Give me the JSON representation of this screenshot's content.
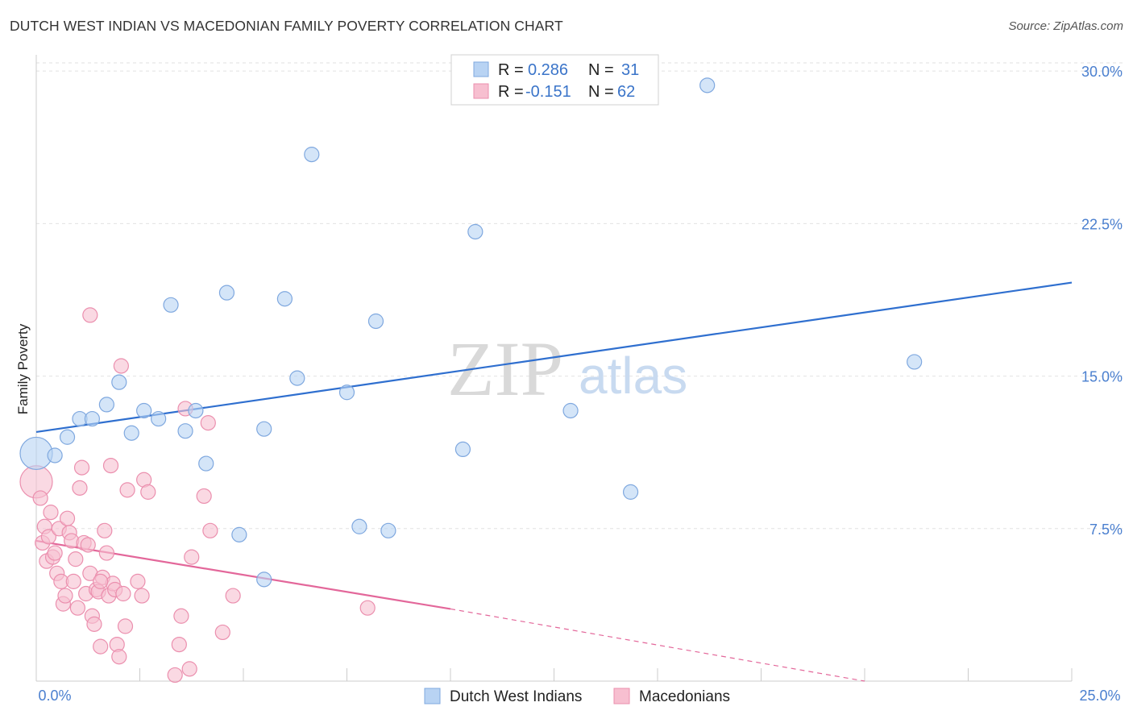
{
  "title": "DUTCH WEST INDIAN VS MACEDONIAN FAMILY POVERTY CORRELATION CHART",
  "source": "Source: ZipAtlas.com",
  "watermark": {
    "zip": "ZIP",
    "atlas": "atlas"
  },
  "colors": {
    "blue_fill": "#b8d3f3",
    "blue_stroke": "#7fa8df",
    "blue_line": "#2f6fcf",
    "pink_fill": "#f7bfd0",
    "pink_stroke": "#eb8fae",
    "pink_line": "#e3679a",
    "grid": "#e2e2e2",
    "axis_text": "#4a7fcf"
  },
  "legend": {
    "rows": [
      {
        "r_label": "R =",
        "r_value": "0.286",
        "n_label": "N =",
        "n_value": "31",
        "series": "blue"
      },
      {
        "r_label": "R =",
        "r_value": "-0.151",
        "n_label": "N =",
        "n_value": "62",
        "series": "pink"
      }
    ]
  },
  "bottom_legend": [
    "Dutch West Indians",
    "Macedonians"
  ],
  "chart_data": {
    "type": "scatter",
    "title": "DUTCH WEST INDIAN VS MACEDONIAN FAMILY POVERTY CORRELATION CHART",
    "xlabel": "",
    "ylabel": "Family Poverty",
    "xlim": [
      0,
      25
    ],
    "ylim": [
      0,
      30.8
    ],
    "x_tick_labels": [
      "0.0%",
      "25.0%"
    ],
    "y_ticks": [
      7.5,
      15.0,
      22.5,
      30.0
    ],
    "y_tick_labels": [
      "7.5%",
      "15.0%",
      "22.5%",
      "30.0%"
    ],
    "grid": true,
    "series": [
      {
        "name": "Dutch West Indians",
        "color": "blue",
        "r": 0.286,
        "n": 31,
        "points": [
          [
            0.0,
            11.2,
            2
          ],
          [
            0.45,
            11.1,
            1
          ],
          [
            0.75,
            12.0,
            1
          ],
          [
            1.05,
            12.9,
            1
          ],
          [
            1.35,
            12.9,
            1
          ],
          [
            1.7,
            13.6,
            1
          ],
          [
            2.0,
            14.7,
            1
          ],
          [
            2.3,
            12.2,
            1
          ],
          [
            2.6,
            13.3,
            1
          ],
          [
            2.95,
            12.9,
            1
          ],
          [
            3.25,
            18.5,
            1
          ],
          [
            3.6,
            12.3,
            1
          ],
          [
            3.85,
            13.3,
            1
          ],
          [
            4.1,
            10.7,
            1
          ],
          [
            4.6,
            19.1,
            1
          ],
          [
            4.9,
            7.2,
            1
          ],
          [
            5.5,
            12.4,
            1
          ],
          [
            5.5,
            5.0,
            1
          ],
          [
            6.0,
            18.8,
            1
          ],
          [
            6.3,
            14.9,
            1
          ],
          [
            6.65,
            25.9,
            1
          ],
          [
            7.5,
            14.2,
            1
          ],
          [
            7.8,
            7.6,
            1
          ],
          [
            8.2,
            17.7,
            1
          ],
          [
            8.5,
            7.4,
            1
          ],
          [
            10.3,
            11.4,
            1
          ],
          [
            10.6,
            22.1,
            1
          ],
          [
            12.9,
            13.3,
            1
          ],
          [
            14.35,
            9.3,
            1
          ],
          [
            16.2,
            29.3,
            1
          ],
          [
            21.2,
            15.7,
            1
          ]
        ],
        "trendline": {
          "x0": 0.0,
          "y0": 12.25,
          "x1": 25.0,
          "y1": 19.6
        }
      },
      {
        "name": "Macedonians",
        "color": "pink",
        "r": -0.151,
        "n": 62,
        "points": [
          [
            0.0,
            9.8,
            2
          ],
          [
            0.1,
            9.0,
            1
          ],
          [
            0.15,
            6.8,
            1
          ],
          [
            0.2,
            7.6,
            1
          ],
          [
            0.25,
            5.9,
            1
          ],
          [
            0.3,
            7.1,
            1
          ],
          [
            0.35,
            8.3,
            1
          ],
          [
            0.4,
            6.1,
            1
          ],
          [
            0.45,
            6.3,
            1
          ],
          [
            0.5,
            5.3,
            1
          ],
          [
            0.55,
            7.5,
            1
          ],
          [
            0.6,
            4.9,
            1
          ],
          [
            0.65,
            3.8,
            1
          ],
          [
            0.7,
            4.2,
            1
          ],
          [
            0.75,
            8.0,
            1
          ],
          [
            0.8,
            7.3,
            1
          ],
          [
            0.85,
            6.9,
            1
          ],
          [
            0.9,
            4.9,
            1
          ],
          [
            0.95,
            6.0,
            1
          ],
          [
            1.0,
            3.6,
            1
          ],
          [
            1.05,
            9.5,
            1
          ],
          [
            1.1,
            10.5,
            1
          ],
          [
            1.15,
            6.8,
            1
          ],
          [
            1.2,
            4.3,
            1
          ],
          [
            1.25,
            6.7,
            1
          ],
          [
            1.3,
            5.3,
            1
          ],
          [
            1.35,
            3.2,
            1
          ],
          [
            1.4,
            2.8,
            1
          ],
          [
            1.45,
            4.5,
            1
          ],
          [
            1.5,
            4.4,
            1
          ],
          [
            1.55,
            1.7,
            1
          ],
          [
            1.6,
            5.1,
            1
          ],
          [
            1.65,
            7.4,
            1
          ],
          [
            1.7,
            6.3,
            1
          ],
          [
            1.75,
            4.2,
            1
          ],
          [
            1.8,
            10.6,
            1
          ],
          [
            1.85,
            4.8,
            1
          ],
          [
            1.9,
            4.5,
            1
          ],
          [
            1.95,
            1.8,
            1
          ],
          [
            2.05,
            15.5,
            1
          ],
          [
            2.1,
            4.3,
            1
          ],
          [
            2.15,
            2.7,
            1
          ],
          [
            2.2,
            9.4,
            1
          ],
          [
            2.55,
            4.2,
            1
          ],
          [
            2.6,
            9.9,
            1
          ],
          [
            2.7,
            9.3,
            1
          ],
          [
            3.35,
            0.3,
            1
          ],
          [
            3.45,
            1.8,
            1
          ],
          [
            3.5,
            3.2,
            1
          ],
          [
            3.6,
            13.4,
            1
          ],
          [
            3.7,
            0.6,
            1
          ],
          [
            3.75,
            6.1,
            1
          ],
          [
            4.05,
            9.1,
            1
          ],
          [
            4.15,
            12.7,
            1
          ],
          [
            4.2,
            7.4,
            1
          ],
          [
            4.5,
            2.4,
            1
          ],
          [
            4.75,
            4.2,
            1
          ],
          [
            1.3,
            18.0,
            1
          ],
          [
            2.0,
            1.2,
            1
          ],
          [
            8.0,
            3.6,
            1
          ],
          [
            1.55,
            4.9,
            1
          ],
          [
            2.45,
            4.9,
            1
          ]
        ],
        "trendline": {
          "x0": 0.0,
          "y0": 6.9,
          "x1": 10.0,
          "y1": 3.55,
          "dash_to_x": 25.0,
          "dash_to_y": -1.5
        }
      }
    ]
  }
}
